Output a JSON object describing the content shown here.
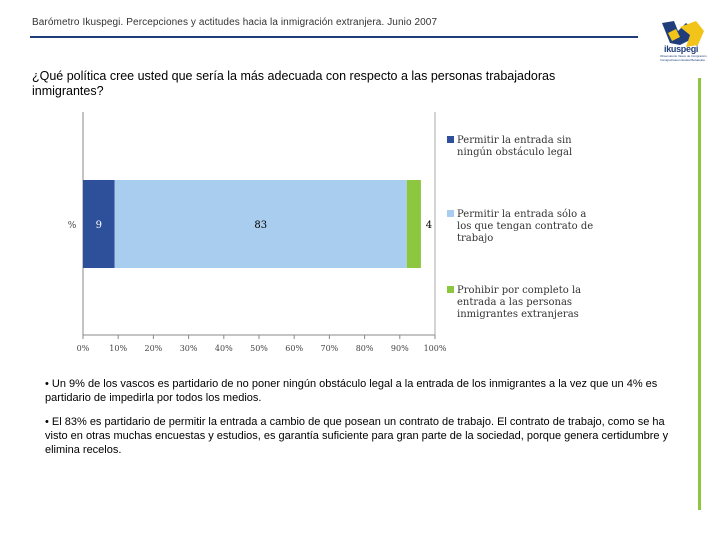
{
  "header": {
    "title": "Barómetro Ikuspegi. Percepciones y actitudes hacia la inmigración extranjera. Junio 2007",
    "logo_text": "ikuspegi",
    "logo_tagline": "Observatorio Vasco de Inmigración · Immigrazioaren Euskal Behatokia"
  },
  "question": "¿Qué política cree usted que sería la más adecuada con respecto a las personas trabajadoras inmigrantes?",
  "chart_data": {
    "type": "bar",
    "orientation": "horizontal",
    "stacked": true,
    "categories": [
      "%"
    ],
    "series": [
      {
        "name": "Permitir la entrada sin ningún obstáculo legal",
        "values": [
          9
        ],
        "color": "#2e4f9a",
        "label": "9"
      },
      {
        "name": "Permitir la entrada sólo a los que tengan contrato de trabajo",
        "values": [
          83
        ],
        "color": "#a9cdee",
        "label": "83"
      },
      {
        "name": "Prohibir por completo la entrada a las personas inmigrantes extranjeras",
        "values": [
          4
        ],
        "color": "#8dc63f",
        "label": "4"
      }
    ],
    "xlim": [
      0,
      100
    ],
    "x_ticks": [
      "0%",
      "10%",
      "20%",
      "30%",
      "40%",
      "50%",
      "60%",
      "70%",
      "80%",
      "90%",
      "100%"
    ],
    "ylabel": "%",
    "legend_position": "right"
  },
  "bullets": [
    "• Un 9% de los vascos es partidario de no poner ningún obstáculo legal a la entrada de los inmigrantes a la vez que un 4% es partidario de impedirla por todos los medios.",
    "• El 83% es partidario de permitir la entrada a cambio de que posean un contrato de trabajo. El contrato de trabajo, como se ha visto en otras muchas encuestas y estudios, es garantía suficiente para gran parte de la sociedad, porque genera certidumbre y elimina recelos."
  ]
}
